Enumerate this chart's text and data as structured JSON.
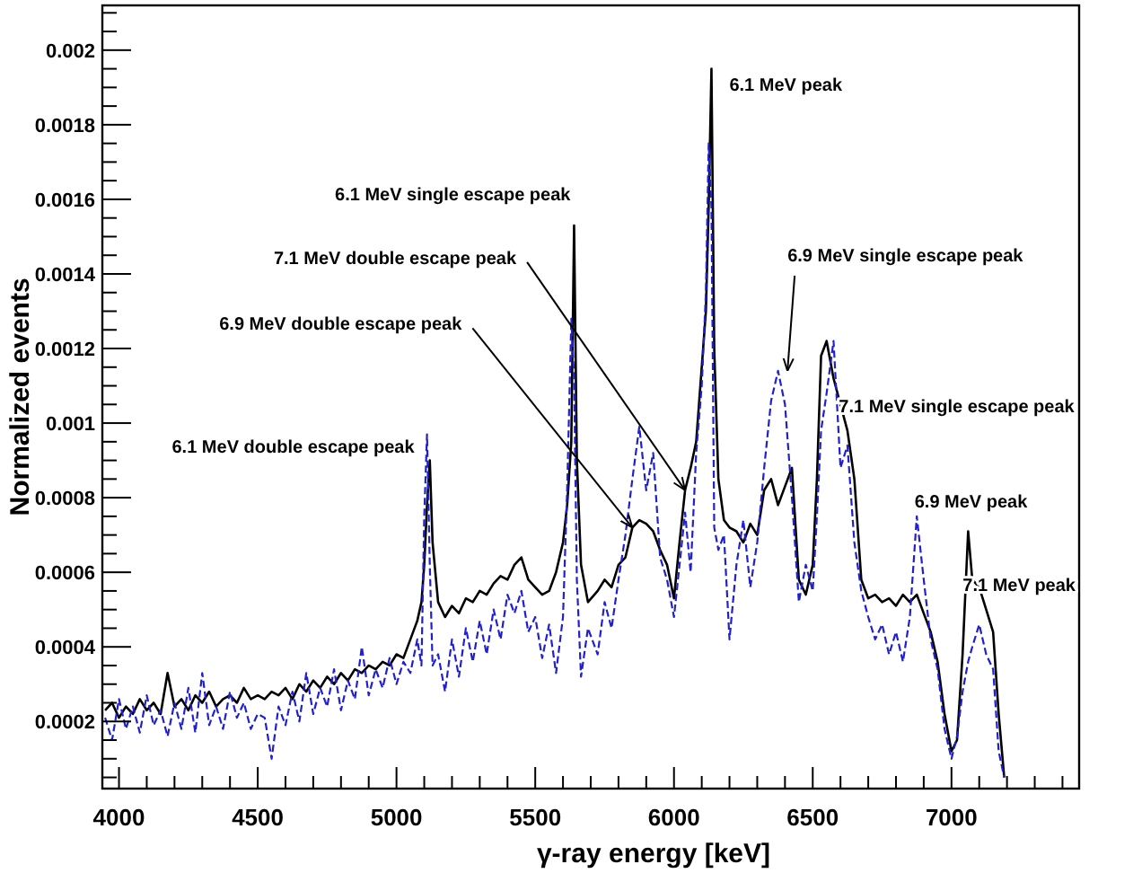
{
  "chart_data": {
    "type": "line",
    "xlabel": "γ-ray energy [keV]",
    "ylabel": "Normalized events",
    "x": [
      3950,
      3975,
      4000,
      4025,
      4050,
      4075,
      4100,
      4125,
      4150,
      4175,
      4200,
      4225,
      4250,
      4275,
      4300,
      4325,
      4350,
      4375,
      4400,
      4425,
      4450,
      4475,
      4500,
      4525,
      4550,
      4575,
      4600,
      4625,
      4650,
      4675,
      4700,
      4725,
      4750,
      4775,
      4800,
      4825,
      4850,
      4875,
      4900,
      4925,
      4950,
      4975,
      5000,
      5025,
      5050,
      5075,
      5090,
      5100,
      5110,
      5120,
      5130,
      5150,
      5175,
      5200,
      5225,
      5250,
      5275,
      5300,
      5325,
      5350,
      5375,
      5400,
      5425,
      5450,
      5475,
      5500,
      5525,
      5550,
      5575,
      5600,
      5615,
      5630,
      5640,
      5650,
      5665,
      5690,
      5725,
      5750,
      5775,
      5800,
      5825,
      5850,
      5875,
      5900,
      5925,
      5950,
      5975,
      6000,
      6020,
      6040,
      6060,
      6080,
      6100,
      6115,
      6125,
      6135,
      6145,
      6160,
      6180,
      6200,
      6225,
      6250,
      6275,
      6300,
      6325,
      6350,
      6375,
      6400,
      6425,
      6450,
      6475,
      6500,
      6515,
      6530,
      6550,
      6575,
      6600,
      6625,
      6650,
      6675,
      6700,
      6725,
      6750,
      6775,
      6800,
      6825,
      6850,
      6875,
      6900,
      6925,
      6950,
      6975,
      7000,
      7020,
      7040,
      7060,
      7075,
      7100,
      7125,
      7150,
      7170,
      7190
    ],
    "series": [
      {
        "color": "#000000",
        "line_style": "solid",
        "values": [
          0.00023,
          0.00025,
          0.00021,
          0.00024,
          0.00022,
          0.00026,
          0.00023,
          0.00025,
          0.00022,
          0.00033,
          0.00024,
          0.00026,
          0.00023,
          0.00027,
          0.00025,
          0.00028,
          0.00024,
          0.00026,
          0.00027,
          0.00025,
          0.00029,
          0.00026,
          0.00027,
          0.00026,
          0.00028,
          0.00027,
          0.00029,
          0.00026,
          0.0003,
          0.00028,
          0.00031,
          0.00029,
          0.00032,
          0.0003,
          0.00033,
          0.00031,
          0.00034,
          0.00033,
          0.00035,
          0.00034,
          0.00036,
          0.00035,
          0.00038,
          0.00037,
          0.00042,
          0.00047,
          0.00052,
          0.00062,
          0.00078,
          0.0009,
          0.00068,
          0.00052,
          0.00048,
          0.00051,
          0.00049,
          0.00053,
          0.00052,
          0.00055,
          0.00054,
          0.00057,
          0.00059,
          0.00058,
          0.00062,
          0.00064,
          0.00058,
          0.00056,
          0.00054,
          0.00055,
          0.0006,
          0.00068,
          0.00078,
          0.00095,
          0.00153,
          0.0009,
          0.00062,
          0.00052,
          0.00055,
          0.00058,
          0.00056,
          0.00062,
          0.00064,
          0.00072,
          0.00074,
          0.00073,
          0.00071,
          0.00066,
          0.00062,
          0.00053,
          0.00068,
          0.00082,
          0.00088,
          0.00095,
          0.00115,
          0.0013,
          0.00158,
          0.00195,
          0.0012,
          0.00085,
          0.00074,
          0.00072,
          0.00071,
          0.00068,
          0.00073,
          0.0007,
          0.00082,
          0.00085,
          0.00078,
          0.00083,
          0.00088,
          0.00058,
          0.00054,
          0.00062,
          0.00085,
          0.00118,
          0.00122,
          0.00112,
          0.00105,
          0.00098,
          0.00085,
          0.00058,
          0.00053,
          0.00054,
          0.00052,
          0.00053,
          0.00051,
          0.00054,
          0.00052,
          0.00054,
          0.00049,
          0.00044,
          0.00036,
          0.00022,
          0.00012,
          0.00015,
          0.00038,
          0.00071,
          0.00058,
          0.00056,
          0.0005,
          0.00044,
          0.00022,
          5e-05
        ]
      },
      {
        "color": "#2020d0",
        "line_style": "dashed",
        "values": [
          0.00021,
          0.00015,
          0.00026,
          0.00018,
          0.00024,
          0.00017,
          0.00027,
          0.00019,
          0.00023,
          0.00016,
          0.00025,
          0.00018,
          0.00029,
          0.00017,
          0.00033,
          0.00019,
          0.00024,
          0.00018,
          0.00028,
          0.00021,
          0.00025,
          0.00018,
          0.00022,
          0.00021,
          0.0001,
          0.00024,
          0.00019,
          0.00028,
          0.0002,
          0.00033,
          0.00022,
          0.00029,
          0.00024,
          0.00034,
          0.00023,
          0.00031,
          0.00026,
          0.0004,
          0.00027,
          0.00034,
          0.00029,
          0.00037,
          0.0003,
          0.00036,
          0.00033,
          0.00042,
          0.00035,
          0.00075,
          0.00097,
          0.00062,
          0.00035,
          0.00038,
          0.00028,
          0.00042,
          0.00032,
          0.00045,
          0.00036,
          0.00047,
          0.00038,
          0.0005,
          0.00042,
          0.00054,
          0.00049,
          0.00055,
          0.00044,
          0.00048,
          0.00037,
          0.00046,
          0.00033,
          0.00048,
          0.00082,
          0.00128,
          0.00112,
          0.00058,
          0.00032,
          0.00045,
          0.00038,
          0.00052,
          0.00045,
          0.00058,
          0.0007,
          0.00085,
          0.00099,
          0.00082,
          0.00092,
          0.00064,
          0.00058,
          0.00048,
          0.00062,
          0.00076,
          0.0006,
          0.00092,
          0.0011,
          0.00135,
          0.00175,
          0.00158,
          0.00072,
          0.00066,
          0.0007,
          0.00042,
          0.00062,
          0.00074,
          0.00056,
          0.00068,
          0.00088,
          0.00106,
          0.00114,
          0.00105,
          0.0008,
          0.00052,
          0.00062,
          0.00055,
          0.00075,
          0.00098,
          0.00108,
          0.00122,
          0.00088,
          0.00094,
          0.00068,
          0.00055,
          0.00048,
          0.00042,
          0.00046,
          0.00038,
          0.00044,
          0.00036,
          0.00048,
          0.00075,
          0.00058,
          0.00042,
          0.00034,
          0.00018,
          0.0001,
          0.00016,
          0.00028,
          0.00036,
          0.0004,
          0.00046,
          0.00038,
          0.00034,
          0.00012,
          5e-05
        ]
      }
    ],
    "xlim": [
      3940,
      7460
    ],
    "xticks": [
      4000,
      {
        "value": 4100,
        "label": null
      },
      {
        "value": 4200,
        "label": null
      },
      {
        "value": 4300,
        "label": null
      },
      {
        "value": 4400,
        "label": null
      },
      4500,
      {
        "value": 4600,
        "label": null
      },
      {
        "value": 4700,
        "label": null
      },
      {
        "value": 4800,
        "label": null
      },
      {
        "value": 4900,
        "label": null
      },
      5000,
      {
        "value": 5100,
        "label": null
      },
      {
        "value": 5200,
        "label": null
      },
      {
        "value": 5300,
        "label": null
      },
      {
        "value": 5400,
        "label": null
      },
      5500,
      {
        "value": 5600,
        "label": null
      },
      {
        "value": 5700,
        "label": null
      },
      {
        "value": 5800,
        "label": null
      },
      {
        "value": 5900,
        "label": null
      },
      6000,
      {
        "value": 6100,
        "label": null
      },
      {
        "value": 6200,
        "label": null
      },
      {
        "value": 6300,
        "label": null
      },
      {
        "value": 6400,
        "label": null
      },
      6500,
      {
        "value": 6600,
        "label": null
      },
      {
        "value": 6700,
        "label": null
      },
      {
        "value": 6800,
        "label": null
      },
      {
        "value": 6900,
        "label": null
      },
      7000,
      {
        "value": 7100,
        "label": null
      },
      {
        "value": 7200,
        "label": null
      },
      {
        "value": 7300,
        "label": null
      },
      {
        "value": 7400,
        "label": null
      }
    ],
    "ylim": [
      2e-05,
      0.00212
    ],
    "yticks": [
      {
        "value": 5e-05,
        "label": null
      },
      {
        "value": 0.0001,
        "label": null
      },
      {
        "value": 0.00015,
        "label": null
      },
      0.0002,
      {
        "value": 0.00025,
        "label": null
      },
      {
        "value": 0.0003,
        "label": null
      },
      {
        "value": 0.00035,
        "label": null
      },
      0.0004,
      {
        "value": 0.00045,
        "label": null
      },
      {
        "value": 0.0005,
        "label": null
      },
      {
        "value": 0.00055,
        "label": null
      },
      0.0006,
      {
        "value": 0.00065,
        "label": null
      },
      {
        "value": 0.0007,
        "label": null
      },
      {
        "value": 0.00075,
        "label": null
      },
      0.0008,
      {
        "value": 0.00085,
        "label": null
      },
      {
        "value": 0.0009,
        "label": null
      },
      {
        "value": 0.00095,
        "label": null
      },
      0.001,
      {
        "value": 0.00105,
        "label": null
      },
      {
        "value": 0.0011,
        "label": null
      },
      {
        "value": 0.00115,
        "label": null
      },
      0.0012,
      {
        "value": 0.00125,
        "label": null
      },
      {
        "value": 0.0013,
        "label": null
      },
      {
        "value": 0.00135,
        "label": null
      },
      0.0014,
      {
        "value": 0.00145,
        "label": null
      },
      {
        "value": 0.0015,
        "label": null
      },
      {
        "value": 0.00155,
        "label": null
      },
      0.0016,
      {
        "value": 0.00165,
        "label": null
      },
      {
        "value": 0.0017,
        "label": null
      },
      {
        "value": 0.00175,
        "label": null
      },
      0.0018,
      {
        "value": 0.00185,
        "label": null
      },
      {
        "value": 0.0019,
        "label": null
      },
      {
        "value": 0.00195,
        "label": null
      },
      0.002,
      {
        "value": 0.00205,
        "label": null
      },
      {
        "value": 0.0021,
        "label": null
      }
    ],
    "grid": false,
    "annotations": [
      {
        "text": "6.1 MeV peak",
        "x": 6135,
        "y": 0.00195
      },
      {
        "text": "6.1 MeV single escape peak",
        "x": 5640,
        "y": 0.00153
      },
      {
        "text": "7.1 MeV double escape peak",
        "x": 6040,
        "y": 0.00082
      },
      {
        "text": "6.9 MeV double escape peak",
        "x": 5850,
        "y": 0.00072
      },
      {
        "text": "6.9 MeV single escape peak",
        "x": 6409,
        "y": 0.00114
      },
      {
        "text": "6.1 MeV double escape peak",
        "x": 5110,
        "y": 0.00097
      },
      {
        "text": "7.1 MeV single escape peak",
        "x": 6620,
        "y": 0.001
      },
      {
        "text": "6.9 MeV peak",
        "x": 6880,
        "y": 0.00075
      },
      {
        "text": "7.1 MeV peak",
        "x": 7060,
        "y": 0.0007
      }
    ]
  }
}
